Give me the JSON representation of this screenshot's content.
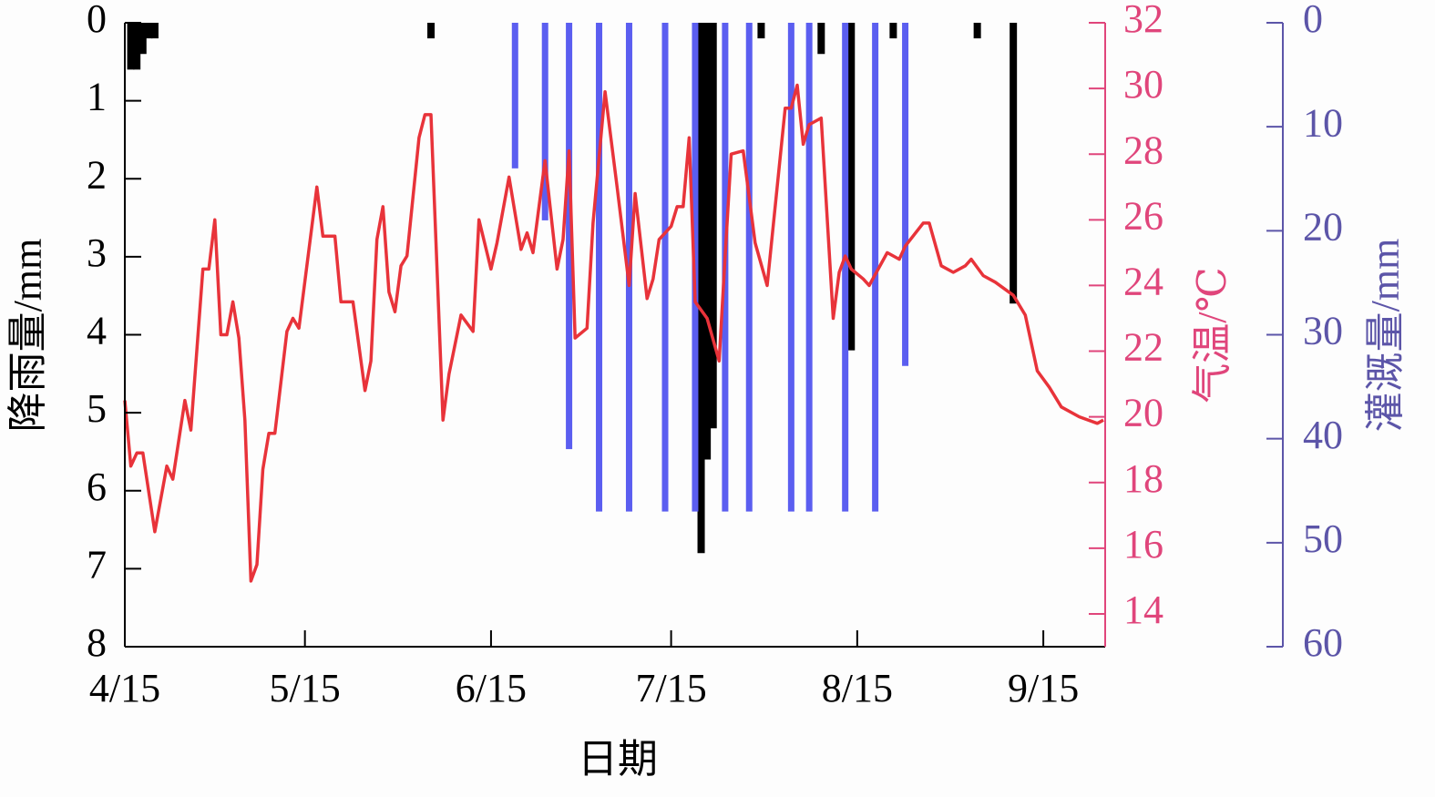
{
  "chart_data": {
    "type": "combo",
    "xlabel": "日期",
    "ylabel": "降雨量/mm",
    "y2label": "气温/℃",
    "y3label": "灌溉量/mm",
    "xlim": [
      "4/15",
      "9/25"
    ],
    "xticks": [
      "4/15",
      "5/15",
      "6/15",
      "7/15",
      "8/15",
      "9/15"
    ],
    "ylim": [
      0,
      8
    ],
    "yticks": [
      0,
      1,
      2,
      3,
      4,
      5,
      6,
      7,
      8
    ],
    "y_inverted": true,
    "y2lim": [
      13,
      32
    ],
    "y2ticks": [
      14,
      16,
      18,
      20,
      22,
      24,
      26,
      28,
      30,
      32
    ],
    "y3lim": [
      0,
      60
    ],
    "y3ticks": [
      0,
      10,
      20,
      30,
      40,
      50,
      60
    ],
    "y3_inverted": true,
    "axis_colors": {
      "y": "#000000",
      "y2": "#e0457b",
      "y3": "#5c55a8"
    },
    "series": [
      {
        "type": "bar",
        "axis": "y",
        "color": "#000000",
        "x": [
          "4/16",
          "4/17",
          "4/18",
          "4/19",
          "4/20",
          "6/5",
          "7/20",
          "7/21",
          "7/22",
          "7/30",
          "8/9",
          "8/14",
          "8/21",
          "9/4",
          "9/10"
        ],
        "values": [
          0.6,
          0.6,
          0.4,
          0.2,
          0.2,
          0.2,
          6.8,
          5.6,
          5.2,
          0.2,
          0.4,
          4.2,
          0.2,
          0.2,
          3.6
        ]
      },
      {
        "type": "bar",
        "axis": "y3",
        "color": "#5b5ef0",
        "x": [
          "6/19",
          "6/24",
          "6/28",
          "7/3",
          "7/8",
          "7/14",
          "7/19",
          "7/24",
          "7/28",
          "8/4",
          "8/7",
          "8/13",
          "8/18",
          "8/23"
        ],
        "values": [
          14,
          19,
          41,
          47,
          47,
          47,
          47,
          47,
          47,
          47,
          47,
          47,
          47,
          33
        ]
      },
      {
        "type": "line",
        "axis": "y2",
        "color": "#e8333a",
        "x": [
          "4/15",
          "4/16",
          "4/17",
          "4/18",
          "4/20",
          "4/22",
          "4/23",
          "4/25",
          "4/26",
          "4/28",
          "4/29",
          "4/30",
          "5/1",
          "5/2",
          "5/3",
          "5/4",
          "5/5",
          "5/6",
          "5/7",
          "5/8",
          "5/9",
          "5/10",
          "5/12",
          "5/13",
          "5/14",
          "5/17",
          "5/18",
          "5/20",
          "5/21",
          "5/23",
          "5/25",
          "5/26",
          "5/27",
          "5/28",
          "5/29",
          "5/30",
          "5/31",
          "6/1",
          "6/3",
          "6/4",
          "6/5",
          "6/7",
          "6/8",
          "6/10",
          "6/12",
          "6/13",
          "6/15",
          "6/16",
          "6/18",
          "6/20",
          "6/21",
          "6/22",
          "6/24",
          "6/26",
          "6/27",
          "6/28",
          "6/29",
          "7/1",
          "7/2",
          "7/4",
          "7/6",
          "7/8",
          "7/9",
          "7/11",
          "7/12",
          "7/13",
          "7/15",
          "7/16",
          "7/17",
          "7/18",
          "7/19",
          "7/21",
          "7/23",
          "7/24",
          "7/25",
          "7/27",
          "7/29",
          "7/31",
          "8/3",
          "8/4",
          "8/5",
          "8/6",
          "8/7",
          "8/9",
          "8/11",
          "8/12",
          "8/13",
          "8/14",
          "8/16",
          "8/17",
          "8/20",
          "8/22",
          "8/23",
          "8/26",
          "8/27",
          "8/29",
          "8/31",
          "9/2",
          "9/3",
          "9/5",
          "9/7",
          "9/10",
          "9/12",
          "9/14",
          "9/16",
          "9/18",
          "9/21",
          "9/24",
          "9/25"
        ],
        "values": [
          20.5,
          18.5,
          18.9,
          18.9,
          16.5,
          18.5,
          18.1,
          20.5,
          19.6,
          24.5,
          24.5,
          26.0,
          22.5,
          22.5,
          23.5,
          22.4,
          19.9,
          15.0,
          15.5,
          18.4,
          19.5,
          19.5,
          22.6,
          23.0,
          22.7,
          27.0,
          25.5,
          25.5,
          23.5,
          23.5,
          20.8,
          21.7,
          25.4,
          26.4,
          23.8,
          23.2,
          24.6,
          24.9,
          28.5,
          29.2,
          29.2,
          19.9,
          21.3,
          23.1,
          22.6,
          26.0,
          24.5,
          25.3,
          27.3,
          25.1,
          25.6,
          25.0,
          27.8,
          24.5,
          25.4,
          28.1,
          22.4,
          22.7,
          25.9,
          29.9,
          27.0,
          24.0,
          26.8,
          23.6,
          24.2,
          25.4,
          25.8,
          26.4,
          26.4,
          28.5,
          23.5,
          23.0,
          21.7,
          24.9,
          28.0,
          28.1,
          25.3,
          24.0,
          29.4,
          29.4,
          30.1,
          28.3,
          28.9,
          29.1,
          23.0,
          24.4,
          24.9,
          24.5,
          24.2,
          24.0,
          25.0,
          24.8,
          25.2,
          25.9,
          25.9,
          24.6,
          24.4,
          24.6,
          24.8,
          24.3,
          24.1,
          23.7,
          23.1,
          21.4,
          20.9,
          20.3,
          20.0,
          19.8,
          19.9
        ]
      }
    ]
  }
}
